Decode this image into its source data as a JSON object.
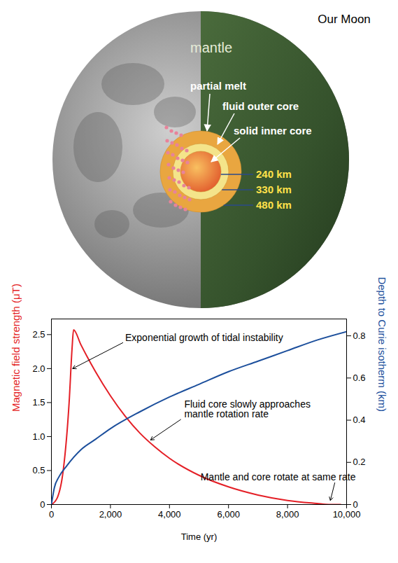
{
  "diagram": {
    "title": "Our Moon",
    "regions": [
      "mantle",
      "partial melt",
      "fluid outer core",
      "solid inner core"
    ],
    "radii": [
      {
        "value": 240,
        "label": "240 km"
      },
      {
        "value": 330,
        "label": "330 km"
      },
      {
        "value": 480,
        "label": "480 km"
      }
    ]
  },
  "chart_data": {
    "type": "line",
    "xlabel": "Time (yr)",
    "ylabel": "Magnetic field strength (μT)",
    "y2label": "Depth to Curie isotherm (km)",
    "xlim": [
      0,
      10000
    ],
    "xticks": [
      0,
      {
        "value": 2000,
        "label": "2,000"
      },
      {
        "value": 4000,
        "label": "4,000"
      },
      {
        "value": 6000,
        "label": "6,000"
      },
      {
        "value": 8000,
        "label": "8,000"
      },
      {
        "value": 10000,
        "label": "10,000"
      }
    ],
    "ylim": [
      0,
      2.73
    ],
    "yticks": [
      0,
      0.5,
      {
        "value": 1,
        "label": "1.0"
      },
      1.5,
      {
        "value": 2,
        "label": "2.0"
      },
      2.5
    ],
    "y2lim": [
      0,
      0.88
    ],
    "y2ticks": [
      0,
      0.2,
      0.4,
      0.6,
      0.8
    ],
    "series": [
      {
        "color": "#e41f26",
        "x": [
          0,
          200,
          400,
          600,
          700,
          750,
          1000,
          1500,
          2000,
          2500,
          3000,
          3500,
          4000,
          5000,
          6000,
          7000,
          8000,
          9000,
          9400,
          9800
        ],
        "values": [
          0,
          0.1,
          0.5,
          1.5,
          2.3,
          2.57,
          2.35,
          1.95,
          1.6,
          1.3,
          1.05,
          0.85,
          0.68,
          0.43,
          0.26,
          0.14,
          0.06,
          0.015,
          0,
          0
        ]
      },
      {
        "color": "#1c4f9c",
        "axis": "y2",
        "x": [
          0,
          100,
          250,
          500,
          1000,
          1500,
          2000,
          3000,
          4000,
          5000,
          6000,
          7000,
          8000,
          9000,
          10000
        ],
        "values": [
          0,
          0.08,
          0.13,
          0.18,
          0.26,
          0.31,
          0.36,
          0.44,
          0.51,
          0.57,
          0.63,
          0.68,
          0.73,
          0.78,
          0.82
        ]
      }
    ],
    "annotations": [
      {
        "text": "Exponential growth of tidal instability",
        "x": 720,
        "y": 2.0
      },
      {
        "text": "Fluid core slowly approaches\nmantle rotation rate",
        "x": 3360,
        "y": 0.95
      },
      {
        "text": "Mantle and core rotate at same rate",
        "x": 9450,
        "y": 0.06
      }
    ]
  }
}
